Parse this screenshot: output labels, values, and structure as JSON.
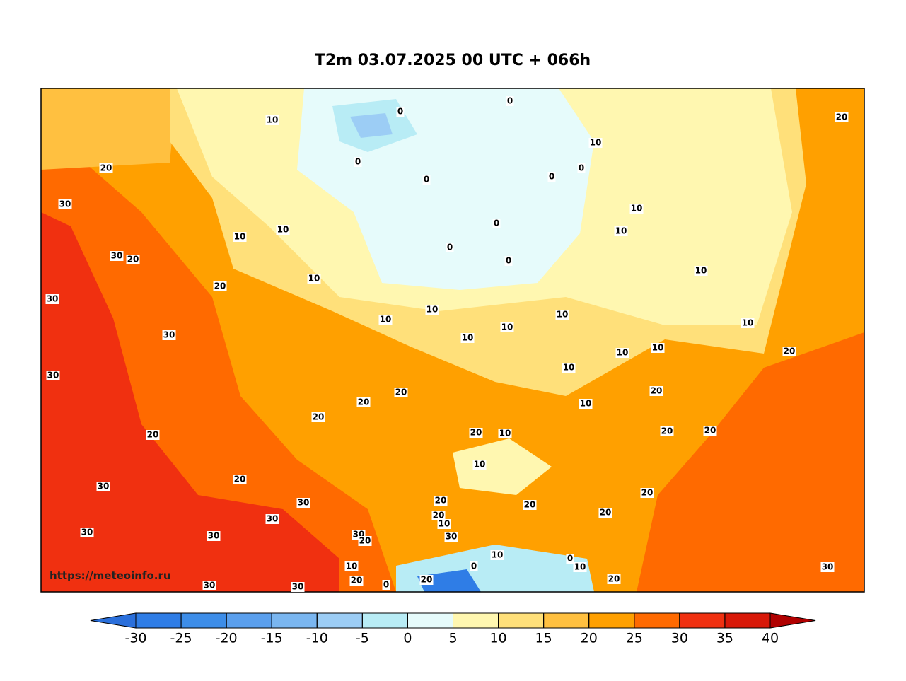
{
  "title": "T2m 03.07.2025 00 UTC + 066h",
  "watermark": "https://meteoinfo.ru",
  "colorbar": {
    "ticks": [
      -30,
      -25,
      -20,
      -15,
      -10,
      -5,
      0,
      5,
      10,
      15,
      20,
      25,
      30,
      35,
      40
    ],
    "colors": [
      "#2a6fdb",
      "#2f7de6",
      "#3d8de8",
      "#5a9fed",
      "#7ab6f0",
      "#9ccdf5",
      "#b8ecf5",
      "#e6fbfb",
      "#fff7b0",
      "#ffe07a",
      "#ffc040",
      "#ffa000",
      "#ff6a00",
      "#f03010",
      "#d81808",
      "#b00000"
    ]
  },
  "contour_labels": [
    10,
    0,
    0,
    20,
    20,
    10,
    0,
    0,
    0,
    0,
    30,
    10,
    10,
    0,
    10,
    10,
    0,
    30,
    20,
    0,
    10,
    10,
    20,
    30,
    10,
    10,
    10,
    10,
    10,
    10,
    30,
    10,
    10,
    20,
    10,
    30,
    20,
    20,
    10,
    20,
    20,
    20,
    10,
    20,
    20,
    20,
    10,
    20,
    30,
    20,
    30,
    20,
    20,
    20,
    20,
    10,
    30,
    30,
    30,
    30,
    20,
    30,
    10,
    0,
    10,
    0,
    10,
    30,
    20,
    20,
    20,
    0,
    30,
    30
  ]
}
